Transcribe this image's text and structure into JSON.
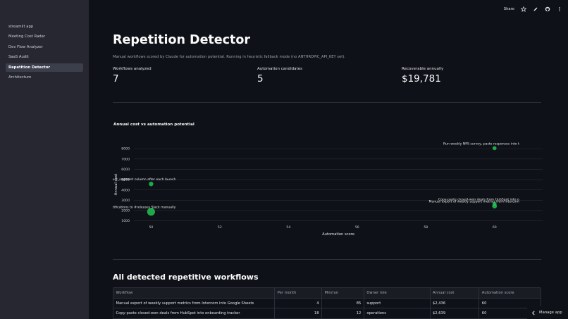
{
  "sidebar": {
    "items": [
      {
        "label": "streamlit app"
      },
      {
        "label": "Meeting Cost Radar"
      },
      {
        "label": "Dev Flow Analyzer"
      },
      {
        "label": "SaaS Audit"
      },
      {
        "label": "Repetition Detector",
        "active": true
      },
      {
        "label": "Architecture"
      }
    ]
  },
  "toolbar": {
    "share_label": "Share"
  },
  "page": {
    "title": "Repetition Detector",
    "caption": "Manual workflows scored by Claude for automation potential. Running in heuristic fallback mode (no ANTHROPIC_API_KEY set)."
  },
  "metrics": [
    {
      "label": "Workflows analyzed",
      "value": "7"
    },
    {
      "label": "Automation candidates",
      "value": "5"
    },
    {
      "label": "Recoverable annually",
      "value": "$19,781"
    }
  ],
  "colors": {
    "background": "#0e1117",
    "sidebar": "#262730",
    "marker": "#21c354"
  },
  "chart_data": {
    "type": "scatter",
    "title": "Annual cost vs automation potential",
    "xlabel": "Automation score",
    "ylabel": "Annual cost",
    "x_ticks": [
      "50",
      "52",
      "54",
      "56",
      "58",
      "60"
    ],
    "y_ticks": [
      "1000",
      "2000",
      "3000",
      "4000",
      "5000",
      "6000",
      "7000",
      "8000"
    ],
    "xlim": [
      49.5,
      61.4
    ],
    "ylim": [
      700,
      8350
    ],
    "grid": "horizontal",
    "points": [
      {
        "x": 60,
        "y": 8050,
        "label": "Run weekly NPS survey, paste responses into t",
        "size": 2.8
      },
      {
        "x": 50,
        "y": 4580,
        "label": "Fill product_segment column after each launch",
        "size": 3.2
      },
      {
        "x": 50,
        "y": 1880,
        "label": "- deploy notifications to #releases Slack manually",
        "size": 5.6
      },
      {
        "x": 60,
        "y": 2639,
        "label": "Copy-paste closed-won deals from HubSpot into o",
        "size": 2.8
      },
      {
        "x": 60,
        "y": 2436,
        "label": "Manual export of weekly support metrics from Intercom",
        "size": 3.4
      }
    ]
  },
  "table": {
    "title": "All detected repetitive workflows",
    "columns": [
      "Workflow",
      "Per month",
      "Min/run",
      "Owner role",
      "Annual cost",
      "Automation score"
    ],
    "rows": [
      [
        "Manual export of weekly support metrics from Intercom into Google Sheets",
        "4",
        "85",
        "support",
        "$2,436",
        "60"
      ],
      [
        "Copy-paste closed-won deals from HubSpot into onboarding tracker",
        "18",
        "12",
        "operations",
        "$2,639",
        "60"
      ]
    ]
  },
  "footer": {
    "manage_label": "Manage app"
  }
}
